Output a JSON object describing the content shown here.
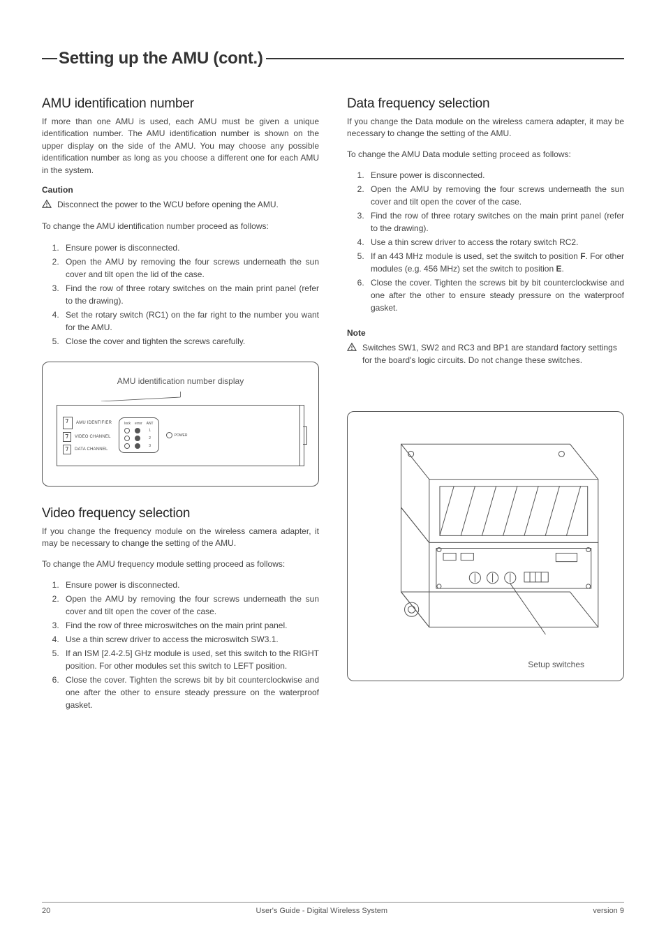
{
  "title": "Setting up the AMU (cont.)",
  "colors": {
    "text": "#333333",
    "body": "#444444",
    "rule": "#333333",
    "border": "#555555",
    "bg": "#ffffff"
  },
  "typography": {
    "title_fontsize": 24,
    "section_fontsize": 19,
    "body_fontsize": 12,
    "lcd_label_fontsize": 6
  },
  "left": {
    "s1": {
      "heading": "AMU identification number",
      "intro": "If more than one AMU is used, each AMU must be given a unique identification number. The AMU identification number is shown on the upper display on the side of the AMU. You may choose any possible identification number as long as you choose a different one for each AMU in the system.",
      "caution_label": "Caution",
      "caution_text": "Disconnect the power to the WCU before opening the AMU.",
      "procedure_lead": "To change the AMU identification number proceed as follows:",
      "steps": [
        "Ensure power is disconnected.",
        "Open the AMU by removing the four screws underneath the sun cover and tilt open the lid of the case.",
        "Find the row of three rotary switches on the main print panel (refer to the drawing).",
        "Set the rotary switch (RC1) on the far right to the number you want for the AMU.",
        "Close the cover and tighten the screws carefully."
      ]
    },
    "fig1": {
      "caption": "AMU identification number display",
      "rows": [
        {
          "label": "AMU IDENTIFIER"
        },
        {
          "label": "VIDEO CHANNEL"
        },
        {
          "label": "DATA CHANNEL"
        }
      ],
      "led_headers": [
        "lock",
        "error",
        "ANT"
      ],
      "led_rows": [
        {
          "lock": "open",
          "error": "filled",
          "ant": "1"
        },
        {
          "lock": "open",
          "error": "filled",
          "ant": "2"
        },
        {
          "lock": "open",
          "error": "filled",
          "ant": "3"
        }
      ],
      "power_label": "POWER"
    },
    "s2": {
      "heading": "Video frequency selection",
      "intro": "If you change the frequency module on the wireless camera adapter, it may be necessary to change the setting of the AMU.",
      "procedure_lead": "To change the AMU frequency module setting proceed as follows:",
      "steps": [
        "Ensure power is disconnected.",
        "Open the AMU by removing the four screws underneath the sun cover and tilt open the cover of the case.",
        "Find the row of three microswitches on the main print panel.",
        "Use a thin screw driver to access the microswitch SW3.1.",
        "If an ISM [2.4-2.5] GHz module is used, set this switch to  the RIGHT position. For other modules set this switch to LEFT position.",
        "Close the cover. Tighten the screws bit by bit counterclockwise and one after the other to ensure steady pressure on the waterproof gasket."
      ]
    }
  },
  "right": {
    "s1": {
      "heading": "Data frequency selection",
      "intro": "If you change the Data module on the wireless camera adapter, it may be necessary to change the setting of the AMU.",
      "procedure_lead": "To change the AMU Data module setting proceed as follows:",
      "steps": [
        "Ensure power is disconnected.",
        "Open the AMU by removing the four screws underneath the sun cover and tilt open the cover of the case.",
        "Find the row of three rotary switches on the main print panel (refer to the drawing).",
        "Use a thin screw driver to access the rotary switch RC2.",
        "If an 443 MHz module is used, set the switch to position F. For other modules (e.g. 456 MHz) set the switch to position E.",
        "Close the cover. Tighten the screws bit by bit counterclockwise and one after the other to ensure steady pressure on the waterproof gasket."
      ],
      "step5_html": "If an 443 MHz module is used, set the switch to position <b>F</b>. For other modules (e.g. 456 MHz) set the switch to position <b>E</b>."
    },
    "note": {
      "label": "Note",
      "text": "Switches SW1, SW2 and RC3 and BP1 are standard factory settings for the board's logic circuits. Do not change these switches."
    },
    "fig2": {
      "caption": "Setup switches"
    }
  },
  "footer": {
    "page": "20",
    "center": "User's Guide - Digital Wireless System",
    "right": "version 9"
  }
}
